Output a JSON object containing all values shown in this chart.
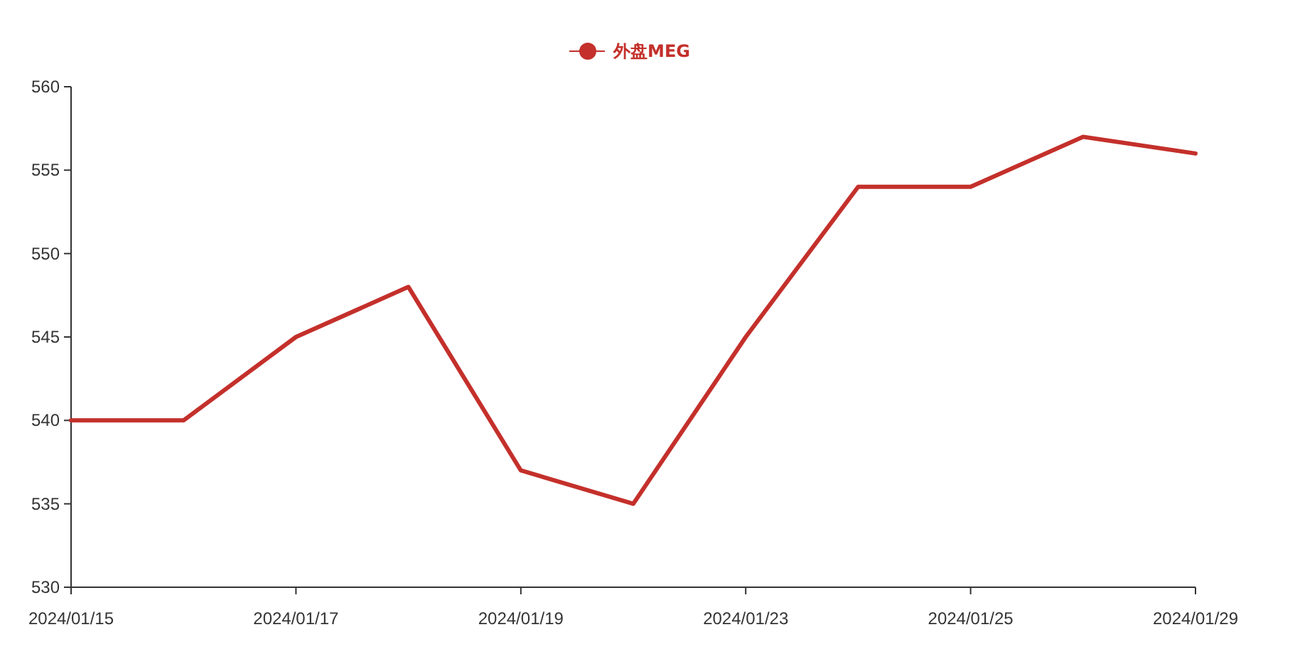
{
  "chart_data": {
    "type": "line",
    "categories": [
      "2024/01/15",
      null,
      "2024/01/17",
      null,
      "2024/01/19",
      null,
      "2024/01/23",
      null,
      "2024/01/25",
      null,
      "2024/01/29"
    ],
    "series": [
      {
        "name": "外盘MEG",
        "color": "#c4302b",
        "values": [
          540,
          540,
          545,
          548,
          537,
          535,
          545,
          554,
          554,
          557,
          556
        ]
      }
    ],
    "ylim": [
      530,
      560
    ],
    "yticks": [
      530,
      535,
      540,
      545,
      550,
      555,
      560
    ],
    "legend": "top"
  }
}
